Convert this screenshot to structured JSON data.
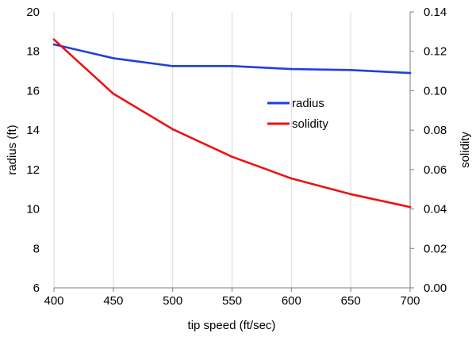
{
  "chart_data": {
    "type": "line",
    "x": [
      400,
      450,
      500,
      550,
      600,
      650,
      700
    ],
    "xlabel": "tip speed (ft/sec)",
    "ylabel_left": "radius (ft)",
    "ylabel_right": "solidity",
    "xlim": [
      400,
      700
    ],
    "x_ticks": [
      400,
      450,
      500,
      550,
      600,
      650,
      700
    ],
    "ylim_left": [
      6,
      20
    ],
    "y_ticks_left": [
      6,
      8,
      10,
      12,
      14,
      16,
      18,
      20
    ],
    "ylim_right": [
      0.0,
      0.14
    ],
    "y_ticks_right": [
      "0.00",
      "0.02",
      "0.04",
      "0.06",
      "0.08",
      "0.10",
      "0.12",
      "0.14"
    ],
    "grid": "vertical",
    "legend_position": "center-right",
    "series": [
      {
        "name": "radius",
        "axis": "left",
        "color": "#1f3fe0",
        "values": [
          18.35,
          17.65,
          17.25,
          17.25,
          17.1,
          17.05,
          16.9
        ]
      },
      {
        "name": "solidity",
        "axis": "right",
        "color": "#ee1111",
        "values": [
          0.126,
          0.0985,
          0.0805,
          0.0665,
          0.0555,
          0.0475,
          0.041
        ]
      }
    ]
  }
}
